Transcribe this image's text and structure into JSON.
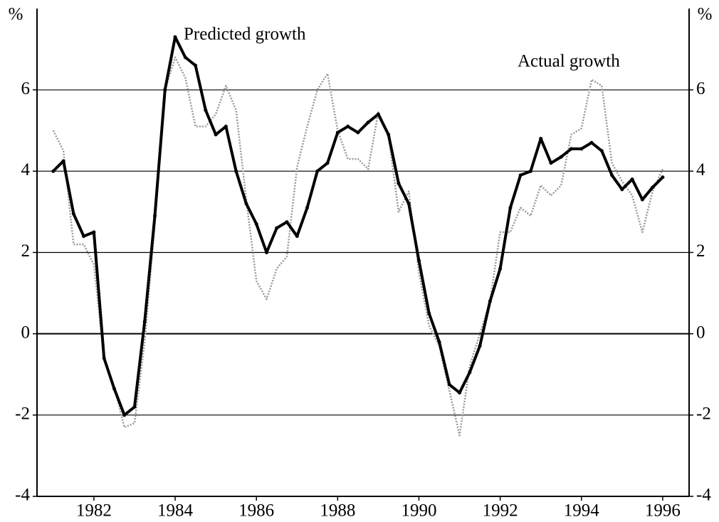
{
  "chart_data": {
    "type": "line",
    "annotations": [
      "Predicted growth",
      "Actual growth"
    ],
    "y_unit": "%",
    "y2_unit": "%",
    "x": [
      1981,
      1981.25,
      1981.5,
      1981.75,
      1982,
      1982.25,
      1982.5,
      1982.75,
      1983,
      1983.25,
      1983.5,
      1983.75,
      1984,
      1984.25,
      1984.5,
      1984.75,
      1985,
      1985.25,
      1985.5,
      1985.75,
      1986,
      1986.25,
      1986.5,
      1986.75,
      1987,
      1987.25,
      1987.5,
      1987.75,
      1988,
      1988.25,
      1988.5,
      1988.75,
      1989,
      1989.25,
      1989.5,
      1989.75,
      1990,
      1990.25,
      1990.5,
      1990.75,
      1991,
      1991.25,
      1991.5,
      1991.75,
      1992,
      1992.25,
      1992.5,
      1992.75,
      1993,
      1993.25,
      1993.5,
      1993.75,
      1994,
      1994.25,
      1994.5,
      1994.75,
      1995,
      1995.25,
      1995.5,
      1995.75,
      1996
    ],
    "series": [
      {
        "name": "Predicted growth",
        "color": "#000000",
        "values": [
          4.0,
          4.25,
          2.95,
          2.4,
          2.5,
          -0.6,
          -1.35,
          -2.0,
          -1.8,
          0.3,
          2.9,
          6.0,
          7.3,
          6.8,
          6.6,
          5.5,
          4.9,
          5.1,
          4.0,
          3.2,
          2.7,
          2.0,
          2.6,
          2.75,
          2.4,
          3.1,
          4.0,
          4.2,
          4.95,
          5.1,
          4.95,
          5.2,
          5.4,
          4.9,
          3.7,
          3.2,
          1.8,
          0.5,
          -0.2,
          -1.25,
          -1.45,
          -0.95,
          -0.3,
          0.8,
          1.6,
          3.1,
          3.9,
          4.0,
          4.8,
          4.2,
          4.35,
          4.55,
          4.55,
          4.7,
          4.5,
          3.9,
          3.55,
          3.8,
          3.3,
          3.6,
          3.85
        ]
      },
      {
        "name": "Actual growth",
        "color": "#999999",
        "values": [
          5.0,
          4.5,
          2.2,
          2.2,
          1.7,
          -0.6,
          -1.3,
          -2.3,
          -2.2,
          -0.2,
          2.7,
          6.0,
          6.8,
          6.3,
          5.1,
          5.1,
          5.4,
          6.1,
          5.5,
          3.3,
          1.3,
          0.85,
          1.6,
          1.9,
          4.1,
          5.1,
          6.0,
          6.4,
          5.0,
          4.3,
          4.3,
          4.05,
          5.45,
          4.9,
          3.0,
          3.5,
          1.5,
          0.2,
          -0.3,
          -1.4,
          -2.5,
          -0.8,
          0.0,
          0.8,
          2.5,
          2.5,
          3.1,
          2.9,
          3.65,
          3.4,
          3.65,
          4.9,
          5.05,
          6.25,
          6.1,
          4.2,
          3.75,
          3.4,
          2.5,
          3.5,
          4.05
        ]
      }
    ],
    "xlim": [
      1980.6,
      1996.65
    ],
    "xticks": [
      1982,
      1984,
      1986,
      1988,
      1990,
      1992,
      1994,
      1996
    ],
    "ylim": [
      -4,
      8
    ],
    "yticks": [
      -4,
      -2,
      0,
      2,
      4,
      6
    ],
    "y2lim": [
      -4,
      8
    ],
    "y2ticks": [
      -4,
      -2,
      0,
      2,
      4,
      6
    ],
    "grid": true
  }
}
